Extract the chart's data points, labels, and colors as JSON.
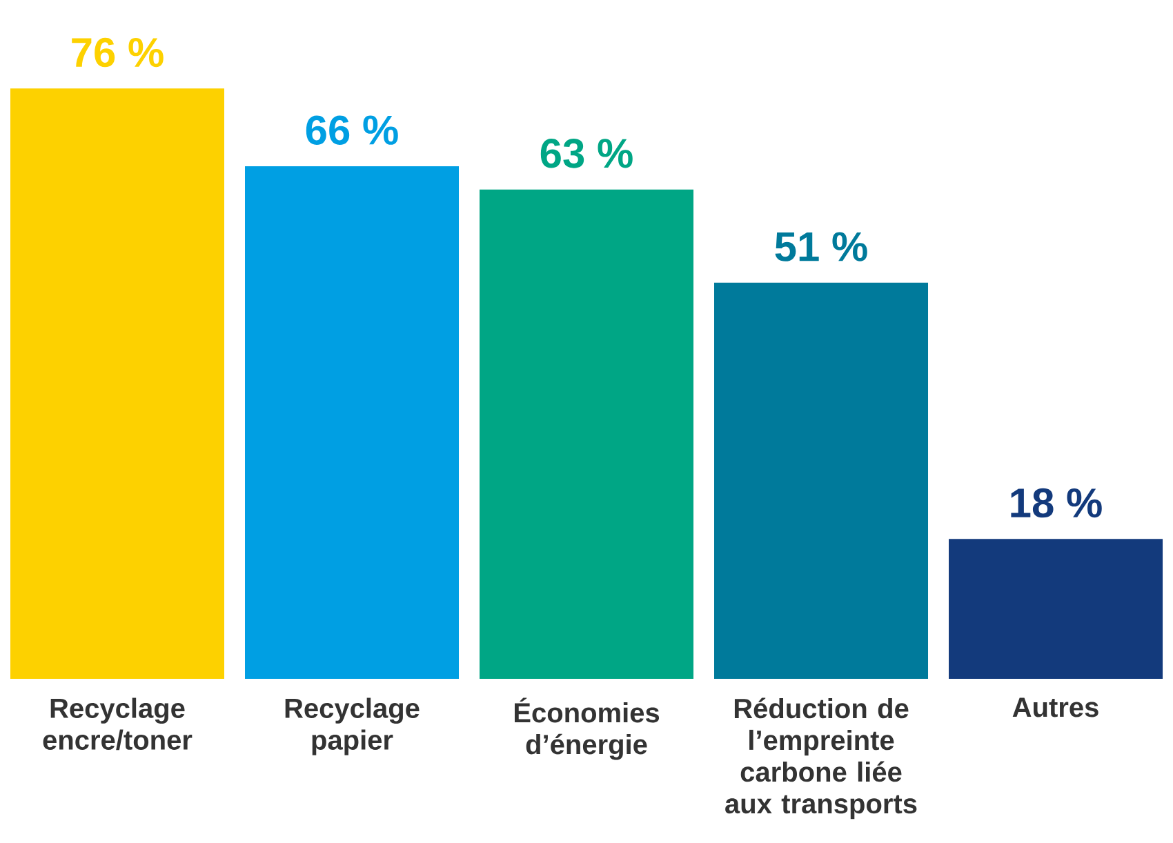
{
  "chart_data": {
    "type": "bar",
    "categories": [
      "Recyclage encre/toner",
      "Recyclage papier",
      "Économies d’énergie",
      "Réduction de l’empreinte carbone liée aux transports",
      "Autres"
    ],
    "values": [
      76,
      66,
      63,
      51,
      18
    ],
    "colors": [
      "#fdd100",
      "#009fe3",
      "#00a685",
      "#007a9b",
      "#133a7c"
    ],
    "value_labels": [
      "76 %",
      "66 %",
      "63 %",
      "51 %",
      "18 %"
    ]
  }
}
